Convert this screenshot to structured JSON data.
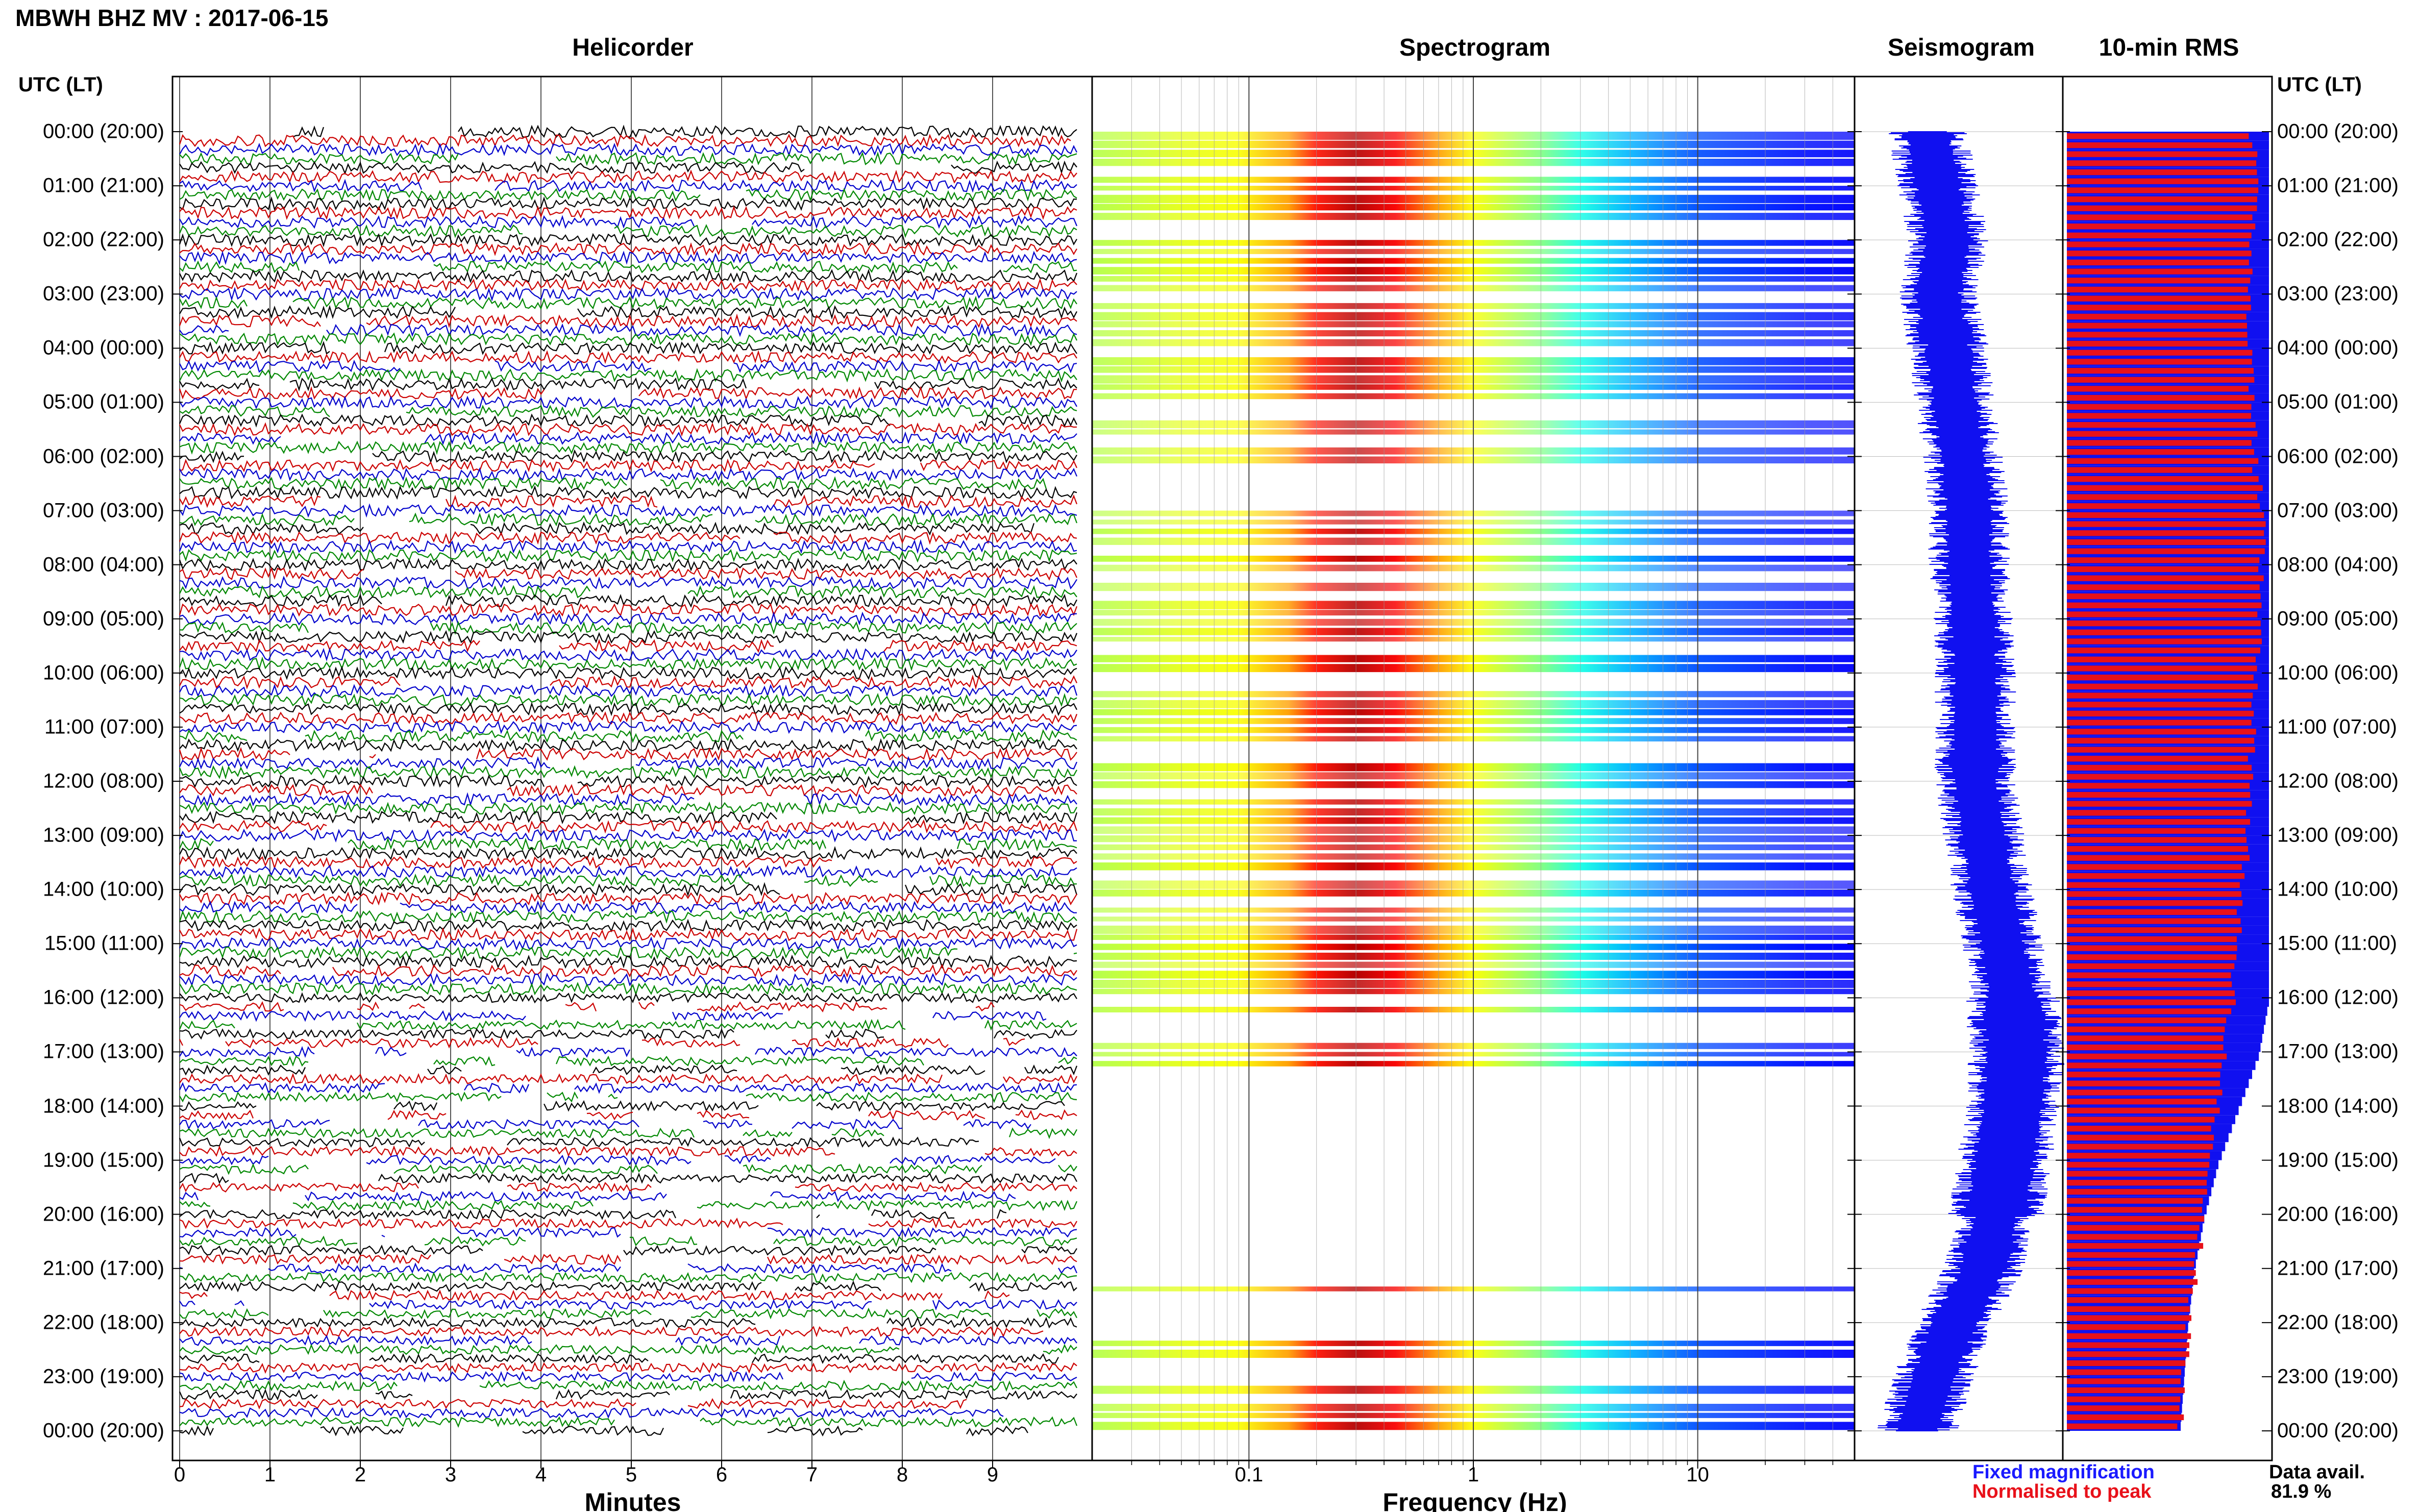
{
  "title": "MBWH BHZ MV : 2017-06-15",
  "panels": {
    "helicorder": "Helicorder",
    "spectrogram": "Spectrogram",
    "seismogram": "Seismogram",
    "rms": "10-min RMS"
  },
  "time_axis_label": "UTC (LT)",
  "time_labels": [
    "00:00 (20:00)",
    "01:00 (21:00)",
    "02:00 (22:00)",
    "03:00 (23:00)",
    "04:00 (00:00)",
    "05:00 (01:00)",
    "06:00 (02:00)",
    "07:00 (03:00)",
    "08:00 (04:00)",
    "09:00 (05:00)",
    "10:00 (06:00)",
    "11:00 (07:00)",
    "12:00 (08:00)",
    "13:00 (09:00)",
    "14:00 (10:00)",
    "15:00 (11:00)",
    "16:00 (12:00)",
    "17:00 (13:00)",
    "18:00 (14:00)",
    "19:00 (15:00)",
    "20:00 (16:00)",
    "21:00 (17:00)",
    "22:00 (18:00)",
    "23:00 (19:00)",
    "00:00 (20:00)"
  ],
  "helicorder_axis": {
    "label": "Minutes",
    "ticks": [
      "0",
      "1",
      "2",
      "3",
      "4",
      "5",
      "6",
      "7",
      "8",
      "9"
    ]
  },
  "spectrogram_axis": {
    "label": "Frequency (Hz)",
    "ticks": [
      "0.1",
      "1",
      "10"
    ]
  },
  "legend": {
    "fixed": "Fixed magnification",
    "normalised": "Normalised to peak",
    "fixed_color": "#1a1aff",
    "normalised_color": "#e8111a"
  },
  "data_availability": {
    "label": "Data avail.",
    "value": "81.9 %"
  },
  "trace_colors": [
    "#000000",
    "#cc0000",
    "#0000cc",
    "#008800"
  ],
  "chart_data": [
    {
      "type": "line",
      "title": "Helicorder",
      "xlabel": "Minutes",
      "xlim": [
        0,
        10
      ],
      "rows_per_hour": 6,
      "hours": 24,
      "notes": "one line per 10-minute segment, colors cycle black, red, blue, green; gaps increase after 16:00 UTC"
    },
    {
      "type": "heatmap",
      "title": "Spectrogram",
      "xlabel": "Frequency (Hz)",
      "xscale": "log",
      "xlim": [
        0.02,
        50
      ],
      "peak_frequency_hz": [
        0.2,
        0.5
      ],
      "colormap": "jet"
    },
    {
      "type": "line",
      "title": "Seismogram",
      "hours": [
        0,
        1,
        2,
        3,
        4,
        5,
        6,
        7,
        8,
        9,
        10,
        11,
        12,
        13,
        14,
        15,
        16,
        17,
        18,
        19,
        20,
        21,
        22,
        23,
        24
      ],
      "center_offset": [
        0.35,
        0.4,
        0.45,
        0.4,
        0.45,
        0.48,
        0.52,
        0.55,
        0.55,
        0.57,
        0.58,
        0.58,
        0.58,
        0.62,
        0.66,
        0.71,
        0.76,
        0.78,
        0.76,
        0.72,
        0.68,
        0.62,
        0.48,
        0.38,
        0.3
      ]
    },
    {
      "type": "bar",
      "title": "10-min RMS",
      "hours": [
        0,
        1,
        2,
        3,
        4,
        5,
        6,
        7,
        8,
        9,
        10,
        11,
        12,
        13,
        14,
        15,
        16,
        17,
        18,
        19,
        20,
        21,
        22,
        23,
        24
      ],
      "normalised_to_peak": [
        0.92,
        0.93,
        0.92,
        0.9,
        0.91,
        0.92,
        0.93,
        0.97,
        0.96,
        0.95,
        0.94,
        0.92,
        0.91,
        0.9,
        0.86,
        0.84,
        0.82,
        0.78,
        0.74,
        0.7,
        0.67,
        0.64,
        0.6,
        0.58,
        0.56
      ],
      "fixed_magnification": [
        1.0,
        1.0,
        1.0,
        1.0,
        1.0,
        1.0,
        1.0,
        1.0,
        1.0,
        1.0,
        1.0,
        1.0,
        1.0,
        1.0,
        1.0,
        1.0,
        1.0,
        0.95,
        0.85,
        0.75,
        0.68,
        0.63,
        0.6,
        0.58,
        0.56
      ]
    }
  ]
}
